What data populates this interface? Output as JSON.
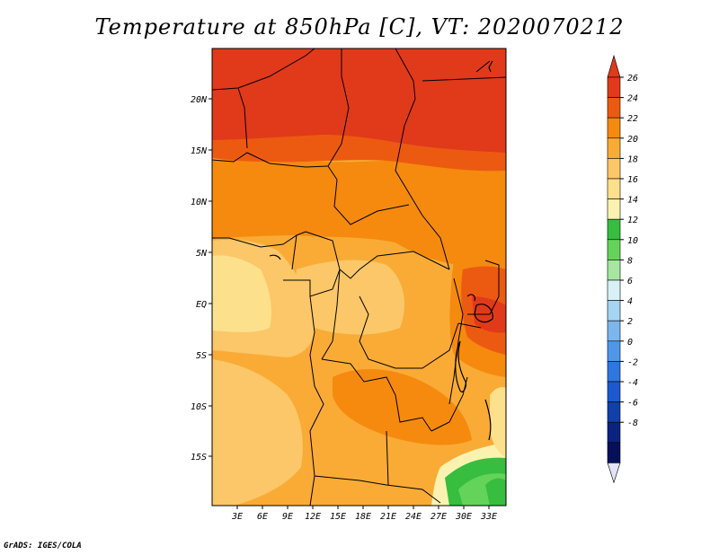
{
  "title": "Temperature at 850hPa [C], VT: 2020070212",
  "footer": "GrADS: IGES/COLA",
  "lat_labels": [
    "20N",
    "15N",
    "10N",
    "5N",
    "EQ",
    "5S",
    "10S",
    "15S"
  ],
  "lon_labels": [
    "3E",
    "6E",
    "9E",
    "12E",
    "15E",
    "18E",
    "21E",
    "24E",
    "27E",
    "30E",
    "33E"
  ],
  "colorbar": {
    "labels": [
      "26",
      "24",
      "22",
      "20",
      "18",
      "16",
      "14",
      "12",
      "10",
      "8",
      "6",
      "4",
      "2",
      "0",
      "-2",
      "-4",
      "-6",
      "-8"
    ],
    "colors": [
      "#e03a1a",
      "#ec5a12",
      "#f58a0e",
      "#f9ab36",
      "#fbc768",
      "#fde08c",
      "#fcf2b0",
      "#37bd40",
      "#63d459",
      "#a6e6a0",
      "#d8f1f6",
      "#a6d4f1",
      "#7cb6ec",
      "#4f97e8",
      "#2f77e0",
      "#1c59cf",
      "#1140a8",
      "#0b227e",
      "#06105a"
    ],
    "top_color": "#e03a1a",
    "bottom_color": "#e2e2fa"
  }
}
